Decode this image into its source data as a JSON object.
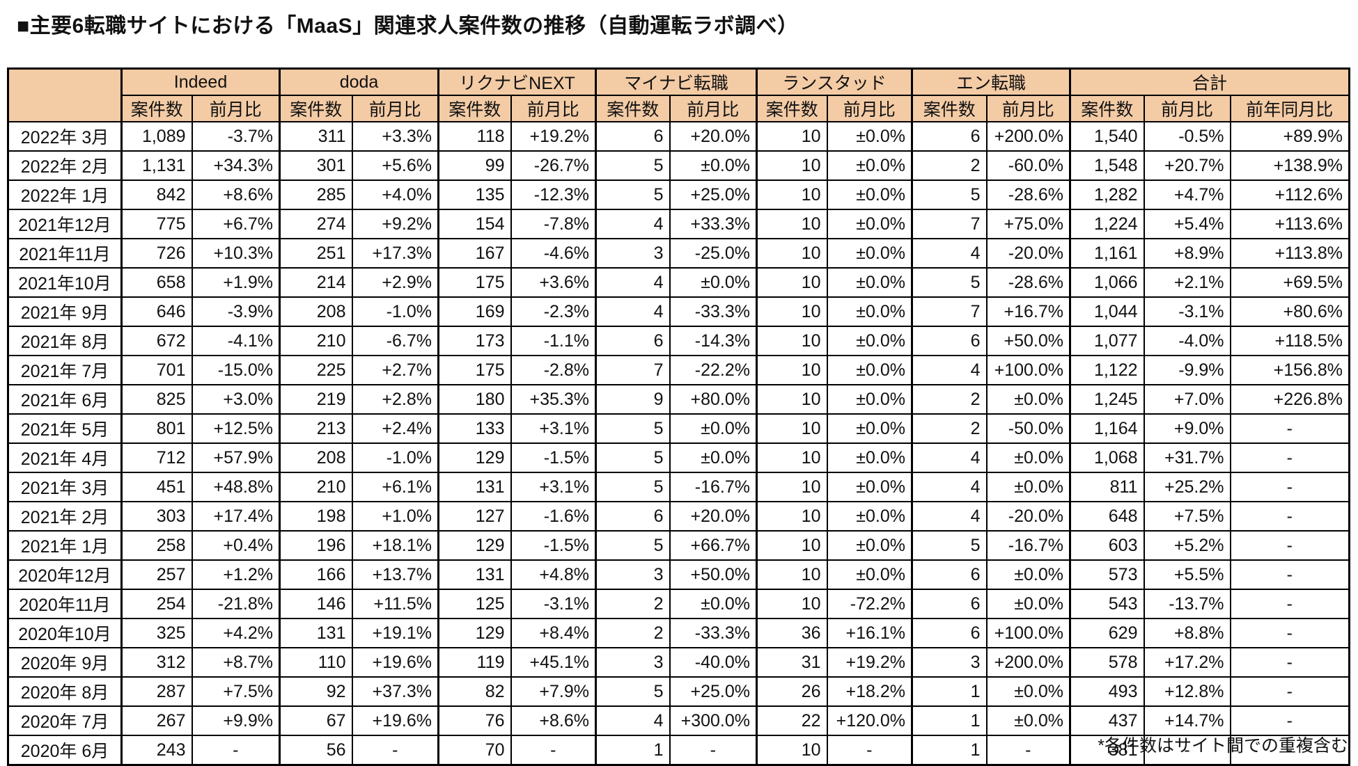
{
  "title": "■主要6転職サイトにおける「MaaS」関連求人案件数の推移（自動運転ラボ調べ）",
  "footnote": "*各件数はサイト間での重複含む",
  "colors": {
    "header_bg": "#F3CBA5",
    "border": "#000000",
    "text": "#111111"
  },
  "chart_data": {
    "type": "table",
    "title": "主要6転職サイトにおける「MaaS」関連求人案件数の推移（自動運転ラボ調べ）",
    "groups": [
      {
        "key": "indeed",
        "label": "Indeed",
        "cols": [
          "案件数",
          "前月比"
        ]
      },
      {
        "key": "doda",
        "label": "doda",
        "cols": [
          "案件数",
          "前月比"
        ]
      },
      {
        "key": "rikunabi-next",
        "label": "リクナビNEXT",
        "cols": [
          "案件数",
          "前月比"
        ]
      },
      {
        "key": "mynavi-tenshoku",
        "label": "マイナビ転職",
        "cols": [
          "案件数",
          "前月比"
        ]
      },
      {
        "key": "randstad",
        "label": "ランスタッド",
        "cols": [
          "案件数",
          "前月比"
        ]
      },
      {
        "key": "en-tenshoku",
        "label": "エン転職",
        "cols": [
          "案件数",
          "前月比"
        ]
      },
      {
        "key": "total",
        "label": "合計",
        "cols": [
          "案件数",
          "前月比",
          "前年同月比"
        ]
      }
    ],
    "rows": [
      {
        "month": "2022年 3月",
        "values": [
          "1,089",
          "-3.7%",
          "311",
          "+3.3%",
          "118",
          "+19.2%",
          "6",
          "+20.0%",
          "10",
          "±0.0%",
          "6",
          "+200.0%",
          "1,540",
          "-0.5%",
          "+89.9%"
        ]
      },
      {
        "month": "2022年 2月",
        "values": [
          "1,131",
          "+34.3%",
          "301",
          "+5.6%",
          "99",
          "-26.7%",
          "5",
          "±0.0%",
          "10",
          "±0.0%",
          "2",
          "-60.0%",
          "1,548",
          "+20.7%",
          "+138.9%"
        ]
      },
      {
        "month": "2022年 1月",
        "values": [
          "842",
          "+8.6%",
          "285",
          "+4.0%",
          "135",
          "-12.3%",
          "5",
          "+25.0%",
          "10",
          "±0.0%",
          "5",
          "-28.6%",
          "1,282",
          "+4.7%",
          "+112.6%"
        ]
      },
      {
        "month": "2021年12月",
        "values": [
          "775",
          "+6.7%",
          "274",
          "+9.2%",
          "154",
          "-7.8%",
          "4",
          "+33.3%",
          "10",
          "±0.0%",
          "7",
          "+75.0%",
          "1,224",
          "+5.4%",
          "+113.6%"
        ]
      },
      {
        "month": "2021年11月",
        "values": [
          "726",
          "+10.3%",
          "251",
          "+17.3%",
          "167",
          "-4.6%",
          "3",
          "-25.0%",
          "10",
          "±0.0%",
          "4",
          "-20.0%",
          "1,161",
          "+8.9%",
          "+113.8%"
        ]
      },
      {
        "month": "2021年10月",
        "values": [
          "658",
          "+1.9%",
          "214",
          "+2.9%",
          "175",
          "+3.6%",
          "4",
          "±0.0%",
          "10",
          "±0.0%",
          "5",
          "-28.6%",
          "1,066",
          "+2.1%",
          "+69.5%"
        ]
      },
      {
        "month": "2021年 9月",
        "values": [
          "646",
          "-3.9%",
          "208",
          "-1.0%",
          "169",
          "-2.3%",
          "4",
          "-33.3%",
          "10",
          "±0.0%",
          "7",
          "+16.7%",
          "1,044",
          "-3.1%",
          "+80.6%"
        ]
      },
      {
        "month": "2021年 8月",
        "values": [
          "672",
          "-4.1%",
          "210",
          "-6.7%",
          "173",
          "-1.1%",
          "6",
          "-14.3%",
          "10",
          "±0.0%",
          "6",
          "+50.0%",
          "1,077",
          "-4.0%",
          "+118.5%"
        ]
      },
      {
        "month": "2021年 7月",
        "values": [
          "701",
          "-15.0%",
          "225",
          "+2.7%",
          "175",
          "-2.8%",
          "7",
          "-22.2%",
          "10",
          "±0.0%",
          "4",
          "+100.0%",
          "1,122",
          "-9.9%",
          "+156.8%"
        ]
      },
      {
        "month": "2021年 6月",
        "values": [
          "825",
          "+3.0%",
          "219",
          "+2.8%",
          "180",
          "+35.3%",
          "9",
          "+80.0%",
          "10",
          "±0.0%",
          "2",
          "±0.0%",
          "1,245",
          "+7.0%",
          "+226.8%"
        ]
      },
      {
        "month": "2021年 5月",
        "values": [
          "801",
          "+12.5%",
          "213",
          "+2.4%",
          "133",
          "+3.1%",
          "5",
          "±0.0%",
          "10",
          "±0.0%",
          "2",
          "-50.0%",
          "1,164",
          "+9.0%",
          "-"
        ]
      },
      {
        "month": "2021年 4月",
        "values": [
          "712",
          "+57.9%",
          "208",
          "-1.0%",
          "129",
          "-1.5%",
          "5",
          "±0.0%",
          "10",
          "±0.0%",
          "4",
          "±0.0%",
          "1,068",
          "+31.7%",
          "-"
        ]
      },
      {
        "month": "2021年 3月",
        "values": [
          "451",
          "+48.8%",
          "210",
          "+6.1%",
          "131",
          "+3.1%",
          "5",
          "-16.7%",
          "10",
          "±0.0%",
          "4",
          "±0.0%",
          "811",
          "+25.2%",
          "-"
        ]
      },
      {
        "month": "2021年 2月",
        "values": [
          "303",
          "+17.4%",
          "198",
          "+1.0%",
          "127",
          "-1.6%",
          "6",
          "+20.0%",
          "10",
          "±0.0%",
          "4",
          "-20.0%",
          "648",
          "+7.5%",
          "-"
        ]
      },
      {
        "month": "2021年 1月",
        "values": [
          "258",
          "+0.4%",
          "196",
          "+18.1%",
          "129",
          "-1.5%",
          "5",
          "+66.7%",
          "10",
          "±0.0%",
          "5",
          "-16.7%",
          "603",
          "+5.2%",
          "-"
        ]
      },
      {
        "month": "2020年12月",
        "values": [
          "257",
          "+1.2%",
          "166",
          "+13.7%",
          "131",
          "+4.8%",
          "3",
          "+50.0%",
          "10",
          "±0.0%",
          "6",
          "±0.0%",
          "573",
          "+5.5%",
          "-"
        ]
      },
      {
        "month": "2020年11月",
        "values": [
          "254",
          "-21.8%",
          "146",
          "+11.5%",
          "125",
          "-3.1%",
          "2",
          "±0.0%",
          "10",
          "-72.2%",
          "6",
          "±0.0%",
          "543",
          "-13.7%",
          "-"
        ]
      },
      {
        "month": "2020年10月",
        "values": [
          "325",
          "+4.2%",
          "131",
          "+19.1%",
          "129",
          "+8.4%",
          "2",
          "-33.3%",
          "36",
          "+16.1%",
          "6",
          "+100.0%",
          "629",
          "+8.8%",
          "-"
        ]
      },
      {
        "month": "2020年 9月",
        "values": [
          "312",
          "+8.7%",
          "110",
          "+19.6%",
          "119",
          "+45.1%",
          "3",
          "-40.0%",
          "31",
          "+19.2%",
          "3",
          "+200.0%",
          "578",
          "+17.2%",
          "-"
        ]
      },
      {
        "month": "2020年 8月",
        "values": [
          "287",
          "+7.5%",
          "92",
          "+37.3%",
          "82",
          "+7.9%",
          "5",
          "+25.0%",
          "26",
          "+18.2%",
          "1",
          "±0.0%",
          "493",
          "+12.8%",
          "-"
        ]
      },
      {
        "month": "2020年 7月",
        "values": [
          "267",
          "+9.9%",
          "67",
          "+19.6%",
          "76",
          "+8.6%",
          "4",
          "+300.0%",
          "22",
          "+120.0%",
          "1",
          "±0.0%",
          "437",
          "+14.7%",
          "-"
        ]
      },
      {
        "month": "2020年 6月",
        "values": [
          "243",
          "-",
          "56",
          "-",
          "70",
          "-",
          "1",
          "-",
          "10",
          "-",
          "1",
          "-",
          "381",
          "-",
          "-"
        ]
      }
    ]
  }
}
